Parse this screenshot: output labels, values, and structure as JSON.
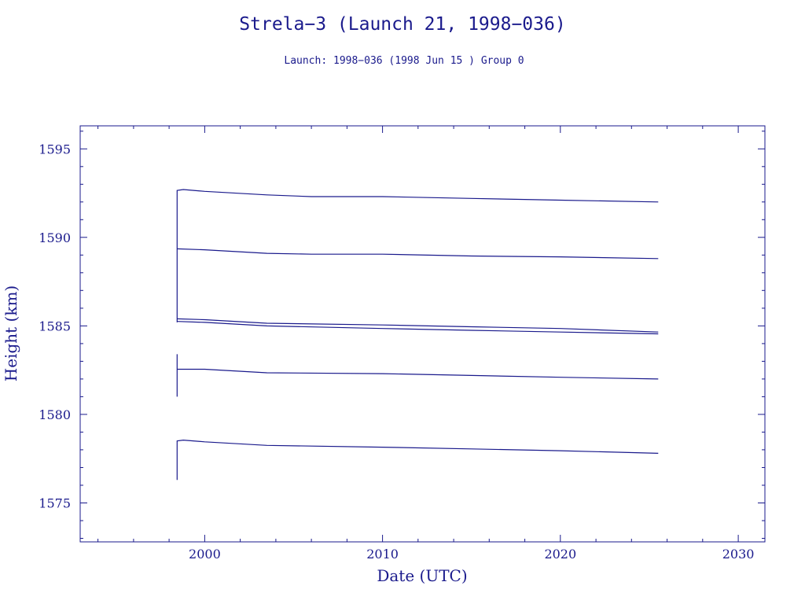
{
  "chart_data": {
    "type": "line",
    "title": "Strela−3 (Launch 21, 1998−036)",
    "subtitle": "Launch: 1998−036  (1998 Jun 15 )  Group 0",
    "xlabel": "Date (UTC)",
    "ylabel": "Height (km)",
    "xlim": [
      1993,
      2031.5
    ],
    "ylim": [
      1572.8,
      1596.3
    ],
    "x_ticks": [
      2000,
      2010,
      2020,
      2030
    ],
    "y_ticks": [
      1575,
      1580,
      1585,
      1590,
      1595
    ],
    "grid": false,
    "color": "#1a1a8c",
    "series": [
      {
        "x": [
          1998.45,
          1998.45,
          1998.8,
          2000,
          2003.5,
          2006,
          2010,
          2015,
          2020,
          2025.5
        ],
        "y": [
          1585.2,
          1592.65,
          1592.7,
          1592.6,
          1592.4,
          1592.3,
          1592.3,
          1592.2,
          1592.1,
          1592.0
        ]
      },
      {
        "x": [
          1998.45,
          2000,
          2003.5,
          2006,
          2010,
          2015,
          2020,
          2025.5
        ],
        "y": [
          1589.35,
          1589.3,
          1589.1,
          1589.05,
          1589.05,
          1588.95,
          1588.9,
          1588.8
        ]
      },
      {
        "x": [
          1998.45,
          2000,
          2003.5,
          2010,
          2015,
          2020,
          2025.5
        ],
        "y": [
          1585.4,
          1585.35,
          1585.15,
          1585.05,
          1584.95,
          1584.85,
          1584.65
        ]
      },
      {
        "x": [
          1998.45,
          2000,
          2003.5,
          2010,
          2015,
          2020,
          2025.5
        ],
        "y": [
          1585.25,
          1585.2,
          1585.0,
          1584.85,
          1584.75,
          1584.65,
          1584.55
        ]
      },
      {
        "x": [
          1998.45,
          1998.45,
          1998.45,
          2000,
          2003.5,
          2010,
          2015,
          2020,
          2025.5
        ],
        "y": [
          1581.0,
          1583.4,
          1582.55,
          1582.55,
          1582.35,
          1582.3,
          1582.2,
          1582.1,
          1582.0
        ]
      },
      {
        "x": [
          1998.45,
          1998.45,
          1998.8,
          2000,
          2003.5,
          2010,
          2015,
          2020,
          2025.5
        ],
        "y": [
          1576.3,
          1578.5,
          1578.55,
          1578.45,
          1578.25,
          1578.15,
          1578.05,
          1577.95,
          1577.8
        ]
      }
    ]
  }
}
